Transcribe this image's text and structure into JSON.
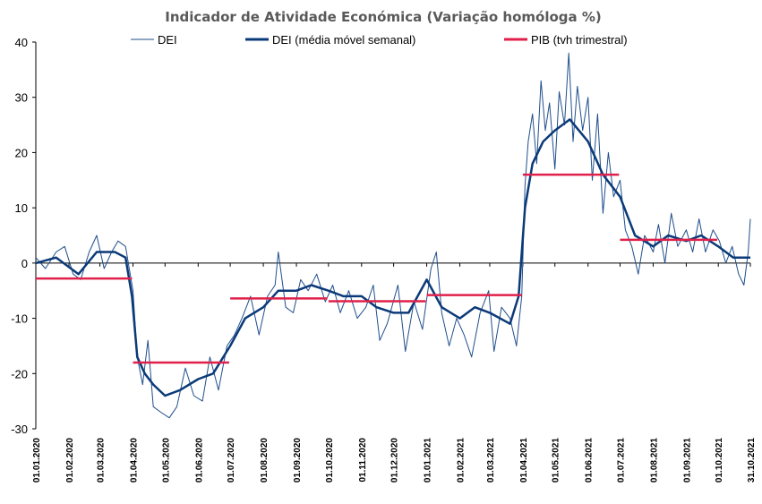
{
  "chart_data": {
    "type": "line",
    "title": "Indicador de Atividade Económica (Variação homóloga %)",
    "xlabel": "",
    "ylabel": "",
    "ylim": [
      -30,
      40
    ],
    "yticks": [
      40,
      30,
      20,
      10,
      0,
      -10,
      -20,
      -30
    ],
    "x_range": [
      "2020-01-01",
      "2021-10-31"
    ],
    "xticks": [
      "01.01.2020",
      "01.02.2020",
      "01.03.2020",
      "01.04.2020",
      "01.05.2020",
      "01.06.2020",
      "01.07.2020",
      "01.08.2020",
      "01.09.2020",
      "01.10.2020",
      "01.11.2020",
      "01.12.2020",
      "01.01.2021",
      "01.02.2021",
      "01.03.2021",
      "01.04.2021",
      "01.05.2021",
      "01.06.2021",
      "01.07.2021",
      "01.08.2021",
      "01.09.2021",
      "01.10.2021",
      "31.10.2021"
    ],
    "grid": false,
    "legend_position": "top",
    "colors": {
      "dei": "#1f4e8c",
      "dei_ma": "#0b3a78",
      "pib": "#e0204a"
    },
    "series": [
      {
        "name": "DEI",
        "style": "thin",
        "points": [
          [
            "2020-01-01",
            1
          ],
          [
            "2020-01-10",
            -1
          ],
          [
            "2020-01-20",
            2
          ],
          [
            "2020-01-28",
            3
          ],
          [
            "2020-02-05",
            -2
          ],
          [
            "2020-02-12",
            -3
          ],
          [
            "2020-02-20",
            2
          ],
          [
            "2020-02-27",
            5
          ],
          [
            "2020-03-05",
            -1
          ],
          [
            "2020-03-12",
            2
          ],
          [
            "2020-03-18",
            4
          ],
          [
            "2020-03-25",
            3
          ],
          [
            "2020-04-01",
            -5
          ],
          [
            "2020-04-05",
            -17
          ],
          [
            "2020-04-10",
            -22
          ],
          [
            "2020-04-15",
            -14
          ],
          [
            "2020-04-20",
            -26
          ],
          [
            "2020-04-27",
            -27
          ],
          [
            "2020-05-05",
            -28
          ],
          [
            "2020-05-12",
            -26
          ],
          [
            "2020-05-20",
            -19
          ],
          [
            "2020-05-28",
            -24
          ],
          [
            "2020-06-05",
            -25
          ],
          [
            "2020-06-12",
            -17
          ],
          [
            "2020-06-20",
            -23
          ],
          [
            "2020-06-28",
            -15
          ],
          [
            "2020-07-05",
            -13
          ],
          [
            "2020-07-12",
            -10
          ],
          [
            "2020-07-20",
            -6
          ],
          [
            "2020-07-28",
            -13
          ],
          [
            "2020-08-05",
            -6
          ],
          [
            "2020-08-12",
            -4
          ],
          [
            "2020-08-15",
            2
          ],
          [
            "2020-08-22",
            -8
          ],
          [
            "2020-08-29",
            -9
          ],
          [
            "2020-09-05",
            -3
          ],
          [
            "2020-09-12",
            -5
          ],
          [
            "2020-09-20",
            -2
          ],
          [
            "2020-09-28",
            -7
          ],
          [
            "2020-10-05",
            -4
          ],
          [
            "2020-10-12",
            -9
          ],
          [
            "2020-10-20",
            -5
          ],
          [
            "2020-10-28",
            -10
          ],
          [
            "2020-11-05",
            -8
          ],
          [
            "2020-11-12",
            -4
          ],
          [
            "2020-11-18",
            -14
          ],
          [
            "2020-11-25",
            -11
          ],
          [
            "2020-12-05",
            -4
          ],
          [
            "2020-12-12",
            -16
          ],
          [
            "2020-12-20",
            -7
          ],
          [
            "2020-12-28",
            -12
          ],
          [
            "2021-01-05",
            -1
          ],
          [
            "2021-01-10",
            2
          ],
          [
            "2021-01-15",
            -9
          ],
          [
            "2021-01-22",
            -15
          ],
          [
            "2021-01-29",
            -10
          ],
          [
            "2021-02-05",
            -13
          ],
          [
            "2021-02-12",
            -17
          ],
          [
            "2021-02-20",
            -9
          ],
          [
            "2021-02-28",
            -5
          ],
          [
            "2021-03-05",
            -16
          ],
          [
            "2021-03-12",
            -8
          ],
          [
            "2021-03-20",
            -10
          ],
          [
            "2021-03-26",
            -15
          ],
          [
            "2021-03-31",
            -6
          ],
          [
            "2021-04-03",
            14
          ],
          [
            "2021-04-06",
            22
          ],
          [
            "2021-04-10",
            27
          ],
          [
            "2021-04-14",
            18
          ],
          [
            "2021-04-18",
            33
          ],
          [
            "2021-04-22",
            24
          ],
          [
            "2021-04-26",
            29
          ],
          [
            "2021-05-01",
            17
          ],
          [
            "2021-05-05",
            31
          ],
          [
            "2021-05-10",
            25
          ],
          [
            "2021-05-14",
            38
          ],
          [
            "2021-05-18",
            22
          ],
          [
            "2021-05-22",
            32
          ],
          [
            "2021-05-27",
            24
          ],
          [
            "2021-06-01",
            30
          ],
          [
            "2021-06-05",
            15
          ],
          [
            "2021-06-10",
            27
          ],
          [
            "2021-06-15",
            9
          ],
          [
            "2021-06-20",
            20
          ],
          [
            "2021-06-25",
            12
          ],
          [
            "2021-07-01",
            15
          ],
          [
            "2021-07-06",
            6
          ],
          [
            "2021-07-12",
            3
          ],
          [
            "2021-07-18",
            -2
          ],
          [
            "2021-07-24",
            5
          ],
          [
            "2021-08-01",
            2
          ],
          [
            "2021-08-06",
            7
          ],
          [
            "2021-08-12",
            0
          ],
          [
            "2021-08-18",
            9
          ],
          [
            "2021-08-24",
            3
          ],
          [
            "2021-09-01",
            6
          ],
          [
            "2021-09-07",
            2
          ],
          [
            "2021-09-13",
            8
          ],
          [
            "2021-09-19",
            2
          ],
          [
            "2021-09-26",
            6
          ],
          [
            "2021-10-02",
            4
          ],
          [
            "2021-10-08",
            0
          ],
          [
            "2021-10-14",
            3
          ],
          [
            "2021-10-20",
            -2
          ],
          [
            "2021-10-25",
            -4
          ],
          [
            "2021-10-29",
            2
          ],
          [
            "2021-10-31",
            8
          ]
        ]
      },
      {
        "name": "DEI (média móvel semanal)",
        "style": "thick",
        "points": [
          [
            "2020-01-01",
            0
          ],
          [
            "2020-01-20",
            1
          ],
          [
            "2020-02-10",
            -2
          ],
          [
            "2020-02-27",
            2
          ],
          [
            "2020-03-15",
            2
          ],
          [
            "2020-03-25",
            1
          ],
          [
            "2020-03-31",
            -6
          ],
          [
            "2020-04-05",
            -17
          ],
          [
            "2020-04-12",
            -20
          ],
          [
            "2020-04-20",
            -22
          ],
          [
            "2020-05-01",
            -24
          ],
          [
            "2020-05-15",
            -23
          ],
          [
            "2020-06-01",
            -21
          ],
          [
            "2020-06-15",
            -20
          ],
          [
            "2020-07-01",
            -15
          ],
          [
            "2020-07-15",
            -10
          ],
          [
            "2020-08-01",
            -8
          ],
          [
            "2020-08-15",
            -5
          ],
          [
            "2020-09-01",
            -5
          ],
          [
            "2020-09-15",
            -4
          ],
          [
            "2020-10-01",
            -5
          ],
          [
            "2020-10-15",
            -6
          ],
          [
            "2020-11-01",
            -6
          ],
          [
            "2020-11-15",
            -8
          ],
          [
            "2020-12-01",
            -9
          ],
          [
            "2020-12-15",
            -9
          ],
          [
            "2021-01-01",
            -3
          ],
          [
            "2021-01-15",
            -8
          ],
          [
            "2021-02-01",
            -10
          ],
          [
            "2021-02-15",
            -8
          ],
          [
            "2021-03-01",
            -9
          ],
          [
            "2021-03-20",
            -11
          ],
          [
            "2021-03-28",
            -6
          ],
          [
            "2021-04-03",
            10
          ],
          [
            "2021-04-10",
            18
          ],
          [
            "2021-04-20",
            22
          ],
          [
            "2021-05-01",
            24
          ],
          [
            "2021-05-15",
            26
          ],
          [
            "2021-06-01",
            22
          ],
          [
            "2021-06-15",
            16
          ],
          [
            "2021-07-01",
            12
          ],
          [
            "2021-07-15",
            5
          ],
          [
            "2021-08-01",
            3
          ],
          [
            "2021-08-15",
            5
          ],
          [
            "2021-09-01",
            4
          ],
          [
            "2021-09-15",
            5
          ],
          [
            "2021-10-01",
            3
          ],
          [
            "2021-10-15",
            1
          ],
          [
            "2021-10-31",
            1
          ]
        ]
      },
      {
        "name": "PIB (tvh trimestral)",
        "style": "step",
        "segments": [
          {
            "from": "2020-01-01",
            "to": "2020-03-31",
            "value": -2.8
          },
          {
            "from": "2020-04-01",
            "to": "2020-06-30",
            "value": -18
          },
          {
            "from": "2020-07-01",
            "to": "2020-09-30",
            "value": -6.4
          },
          {
            "from": "2020-10-01",
            "to": "2020-12-31",
            "value": -6.9
          },
          {
            "from": "2021-01-01",
            "to": "2021-03-31",
            "value": -5.8
          },
          {
            "from": "2021-04-01",
            "to": "2021-06-30",
            "value": 16
          },
          {
            "from": "2021-07-01",
            "to": "2021-09-30",
            "value": 4.2
          }
        ]
      }
    ]
  }
}
